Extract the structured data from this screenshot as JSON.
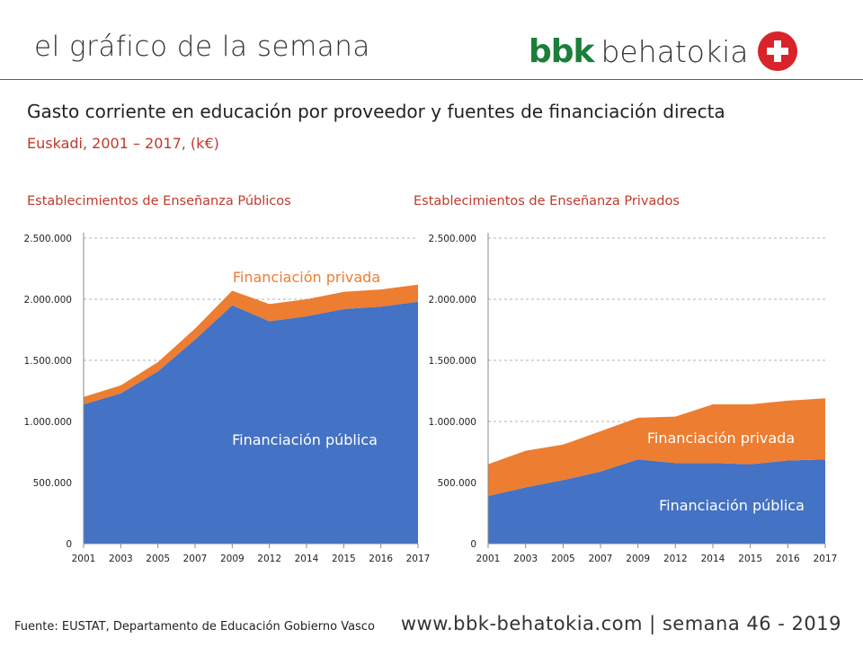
{
  "header": {
    "title": "el gráfico de la semana"
  },
  "logo": {
    "bbk": "bbk",
    "behatokia": "behatokia"
  },
  "main_title": "Gasto corriente en educación por proveedor y fuentes de financiación directa",
  "subtitle": "Euskadi, 2001 – 2017, (k€)",
  "colors": {
    "publica": "#4472c4",
    "privada": "#ed7d31",
    "accent": "#c0392b",
    "brand_green": "#1b7f3a"
  },
  "chart_data": [
    {
      "type": "area",
      "title": "Establecimientos de Enseñanza Públicos",
      "categories": [
        "2001",
        "2003",
        "2005",
        "2007",
        "2009",
        "2012",
        "2014",
        "2015",
        "2016",
        "2017"
      ],
      "y_ticks": [
        "0",
        "500.000",
        "1.000.000",
        "1.500.000",
        "2.000.000",
        "2.500.000"
      ],
      "ylim": [
        0,
        2500000
      ],
      "stacked": true,
      "grid": true,
      "series": [
        {
          "name": "Financiación pública",
          "values": [
            1140000,
            1230000,
            1410000,
            1670000,
            1950000,
            1820000,
            1860000,
            1920000,
            1940000,
            1980000
          ]
        },
        {
          "name": "Financiación privada",
          "values": [
            60000,
            65000,
            75000,
            90000,
            120000,
            140000,
            140000,
            140000,
            140000,
            140000
          ]
        }
      ]
    },
    {
      "type": "area",
      "title": "Establecimientos de Enseñanza Privados",
      "categories": [
        "2001",
        "2003",
        "2005",
        "2007",
        "2009",
        "2012",
        "2014",
        "2015",
        "2016",
        "2017"
      ],
      "y_ticks": [
        "0",
        "500.000",
        "1.000.000",
        "1.500.000",
        "2.000.000",
        "2.500.000"
      ],
      "ylim": [
        0,
        2500000
      ],
      "stacked": true,
      "grid": true,
      "series": [
        {
          "name": "Financiación pública",
          "values": [
            390000,
            460000,
            520000,
            590000,
            690000,
            660000,
            660000,
            650000,
            680000,
            690000
          ]
        },
        {
          "name": "Financiación privada",
          "values": [
            260000,
            300000,
            290000,
            330000,
            340000,
            380000,
            480000,
            490000,
            490000,
            500000
          ]
        }
      ]
    }
  ],
  "footer": {
    "source": "Fuente:  EUSTAT, Departamento de Educación Gobierno Vasco",
    "url": "www.bbk-behatokia.com | semana 46 - 2019"
  }
}
